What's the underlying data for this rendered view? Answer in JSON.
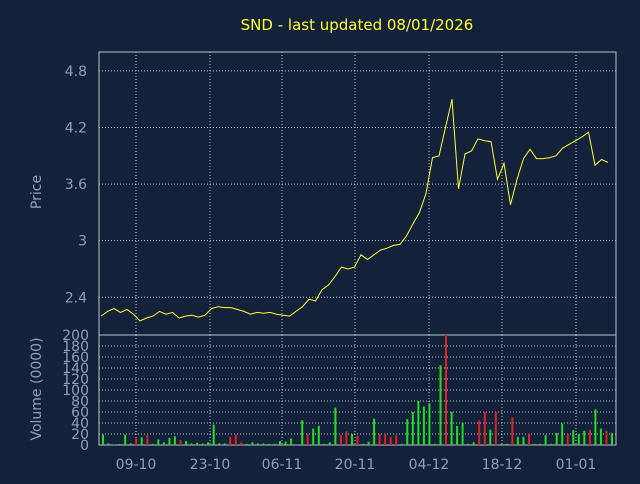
{
  "colors": {
    "background": "#14213a",
    "grid": "#b9c2cf",
    "axis": "#8ea0b6",
    "title": "#ffff33",
    "price_line": "#ffff33",
    "volume_up": "#22dd22",
    "volume_down": "#dd2222"
  },
  "chart_data": [
    {
      "type": "line",
      "title": "SND - last updated 08/01/2026",
      "xlabel": "",
      "ylabel": "Price",
      "x_tick_labels": [
        "09-10",
        "23-10",
        "06-11",
        "20-11",
        "04-12",
        "18-12",
        "01-01"
      ],
      "y_ticks": [
        "2.4",
        "3",
        "3.6",
        "4.2",
        "4.8"
      ],
      "ylim": [
        2.0,
        5.0
      ],
      "grid": true,
      "series": [
        {
          "values": [
            2.2,
            2.25,
            2.28,
            2.24,
            2.27,
            2.22,
            2.15,
            2.18,
            2.2,
            2.25,
            2.22,
            2.24,
            2.18,
            2.2,
            2.21,
            2.19,
            2.21,
            2.28,
            2.3,
            2.29,
            2.29,
            2.27,
            2.25,
            2.22,
            2.24,
            2.23,
            2.24,
            2.22,
            2.21,
            2.2,
            2.25,
            2.3,
            2.38,
            2.36,
            2.48,
            2.53,
            2.62,
            2.72,
            2.7,
            2.72,
            2.85,
            2.8,
            2.85,
            2.9,
            2.92,
            2.95,
            2.96,
            3.05,
            3.18,
            3.3,
            3.5,
            3.88,
            3.9,
            4.2,
            4.5,
            3.55,
            3.92,
            3.95,
            4.08,
            4.06,
            4.05,
            3.65,
            3.82,
            3.38,
            3.65,
            3.87,
            3.97,
            3.87,
            3.87,
            3.88,
            3.9,
            3.98,
            4.02,
            4.06,
            4.1,
            4.15,
            3.8,
            3.86,
            3.83
          ]
        }
      ]
    },
    {
      "type": "bar",
      "title": "",
      "xlabel": "",
      "ylabel": "Volume (0000)",
      "x_tick_labels": [
        "09-10",
        "23-10",
        "06-11",
        "20-11",
        "04-12",
        "18-12",
        "01-01"
      ],
      "y_ticks": [
        "0",
        "20",
        "40",
        "60",
        "80",
        "100",
        "120",
        "140",
        "160",
        "180",
        "200"
      ],
      "ylim": [
        0,
        200
      ],
      "grid": true,
      "series": [
        {
          "values": [
            19,
            3,
            1,
            2,
            19,
            3,
            12,
            14,
            18,
            2,
            10,
            5,
            13,
            16,
            9,
            7,
            3,
            4,
            3,
            5,
            37,
            3,
            3,
            15,
            19,
            5,
            2,
            5,
            3,
            3,
            2,
            2,
            7,
            6,
            12,
            1,
            45,
            20,
            30,
            35,
            2,
            5,
            68,
            18,
            25,
            20,
            17,
            2,
            6,
            48,
            20,
            20,
            14,
            17,
            2,
            47,
            60,
            80,
            70,
            76,
            2,
            145,
            200,
            60,
            35,
            40,
            2,
            5,
            45,
            60,
            28,
            60,
            2,
            2,
            50,
            15,
            15,
            21,
            2,
            2,
            18,
            2,
            22,
            39,
            20,
            27,
            20,
            26,
            27,
            65,
            30,
            26,
            22
          ],
          "direction": [
            "up",
            "up",
            "up",
            "up",
            "up",
            "up",
            "down",
            "up",
            "down",
            "up",
            "up",
            "up",
            "up",
            "up",
            "down",
            "up",
            "up",
            "up",
            "up",
            "up",
            "up",
            "up",
            "up",
            "down",
            "down",
            "down",
            "up",
            "up",
            "up",
            "up",
            "up",
            "up",
            "up",
            "up",
            "up",
            "up",
            "up",
            "down",
            "up",
            "up",
            "up",
            "up",
            "up",
            "down",
            "down",
            "up",
            "down",
            "up",
            "up",
            "up",
            "down",
            "down",
            "down",
            "down",
            "up",
            "up",
            "up",
            "up",
            "up",
            "up",
            "up",
            "up",
            "down",
            "up",
            "up",
            "up",
            "up",
            "up",
            "down",
            "down",
            "up",
            "down",
            "up",
            "up",
            "down",
            "up",
            "up",
            "down",
            "up",
            "up",
            "up",
            "up",
            "up",
            "up",
            "down",
            "up",
            "up",
            "up",
            "down",
            "up",
            "up",
            "down",
            "up"
          ]
        }
      ]
    }
  ]
}
